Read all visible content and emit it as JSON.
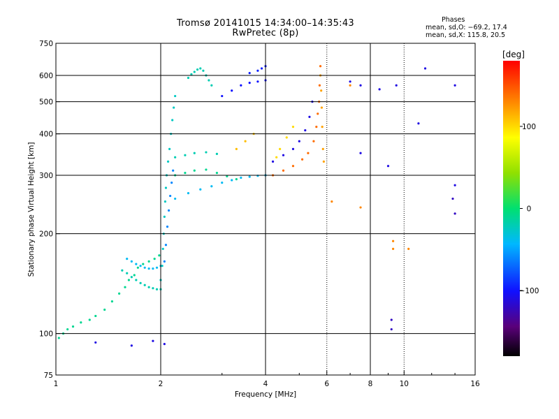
{
  "chart_data": {
    "type": "scatter",
    "title": "Tromsø 20141015 14:34:00–14:35:43",
    "subtitle": "RwPretec (8p)",
    "xlabel": "Frequency [MHz]",
    "ylabel": "Stationary phase Virtual Height [km]",
    "x_scale": "log",
    "y_scale": "log",
    "xlim": [
      1,
      16
    ],
    "ylim": [
      75,
      750
    ],
    "grid": true,
    "x_ticks": [
      1,
      2,
      4,
      6,
      8,
      10,
      16
    ],
    "x_tick_labels": [
      "1",
      "2",
      "4",
      "6",
      "8",
      "10",
      "16"
    ],
    "x_grid_lines": [
      2,
      4,
      8
    ],
    "x_dotted_lines": [
      6,
      10
    ],
    "y_ticks": [
      75,
      100,
      200,
      300,
      400,
      500,
      600,
      750
    ],
    "y_tick_labels": [
      "75",
      "100",
      "200",
      "300",
      "400",
      "500",
      "600",
      "750"
    ],
    "y_grid_lines": [
      100,
      200,
      300,
      400,
      500,
      600
    ],
    "stats": {
      "heading": "Phases",
      "line_o": "mean, sd,O: −69.2, 17.4",
      "line_x": "mean, sd,X: 115.8, 20.5"
    },
    "colorbar": {
      "label": "[deg]",
      "range": [
        -180,
        180
      ],
      "ticks": [
        100,
        0,
        -100
      ],
      "tick_labels": [
        "100",
        "0",
        "−100"
      ]
    },
    "series": [
      {
        "values": [
          [
            1.02,
            97
          ],
          [
            1.05,
            100
          ],
          [
            1.08,
            103
          ],
          [
            1.12,
            105
          ],
          [
            1.18,
            108
          ],
          [
            1.25,
            110
          ],
          [
            1.3,
            113
          ],
          [
            1.38,
            118
          ],
          [
            1.45,
            125
          ],
          [
            1.52,
            132
          ],
          [
            1.58,
            138
          ],
          [
            1.62,
            145
          ],
          [
            1.68,
            150
          ],
          [
            1.72,
            158
          ],
          [
            1.78,
            162
          ],
          [
            1.85,
            165
          ],
          [
            1.92,
            168
          ],
          [
            1.98,
            172
          ]
        ],
        "phase": -10
      },
      {
        "values": [
          [
            1.55,
            155
          ],
          [
            1.6,
            152
          ],
          [
            1.65,
            148
          ],
          [
            1.7,
            145
          ],
          [
            1.75,
            142
          ],
          [
            1.8,
            140
          ],
          [
            1.85,
            138
          ],
          [
            1.9,
            137
          ],
          [
            1.95,
            136
          ],
          [
            2.0,
            136
          ]
        ],
        "phase": -20
      },
      {
        "values": [
          [
            1.6,
            168
          ],
          [
            1.65,
            165
          ],
          [
            1.7,
            162
          ],
          [
            1.75,
            160
          ],
          [
            1.8,
            158
          ],
          [
            1.85,
            157
          ],
          [
            1.9,
            157
          ],
          [
            1.95,
            158
          ],
          [
            2.0,
            160
          ]
        ],
        "phase": -40
      },
      {
        "values": [
          [
            2.0,
            145
          ],
          [
            2.02,
            160
          ],
          [
            2.03,
            180
          ],
          [
            2.04,
            200
          ],
          [
            2.05,
            225
          ],
          [
            2.06,
            250
          ],
          [
            2.07,
            275
          ],
          [
            2.08,
            300
          ],
          [
            2.1,
            330
          ],
          [
            2.12,
            360
          ],
          [
            2.14,
            400
          ],
          [
            2.16,
            440
          ],
          [
            2.18,
            480
          ],
          [
            2.2,
            520
          ]
        ],
        "phase": -25
      },
      {
        "values": [
          [
            2.05,
            165
          ],
          [
            2.07,
            185
          ],
          [
            2.09,
            210
          ],
          [
            2.11,
            235
          ],
          [
            2.13,
            260
          ],
          [
            2.15,
            285
          ],
          [
            2.17,
            310
          ]
        ],
        "phase": -60
      },
      {
        "values": [
          [
            2.4,
            590
          ],
          [
            2.45,
            605
          ],
          [
            2.5,
            615
          ],
          [
            2.55,
            625
          ],
          [
            2.6,
            630
          ],
          [
            2.65,
            620
          ],
          [
            2.7,
            600
          ],
          [
            2.75,
            580
          ],
          [
            2.8,
            560
          ]
        ],
        "phase": -20
      },
      {
        "values": [
          [
            2.2,
            300
          ],
          [
            2.35,
            305
          ],
          [
            2.5,
            310
          ],
          [
            2.7,
            312
          ],
          [
            2.9,
            305
          ],
          [
            3.1,
            298
          ],
          [
            3.3,
            292
          ]
        ],
        "phase": -10
      },
      {
        "values": [
          [
            2.2,
            340
          ],
          [
            2.35,
            345
          ],
          [
            2.5,
            350
          ],
          [
            2.7,
            352
          ],
          [
            2.9,
            348
          ]
        ],
        "phase": -20
      },
      {
        "values": [
          [
            2.2,
            255
          ],
          [
            2.4,
            265
          ],
          [
            2.6,
            272
          ],
          [
            2.8,
            278
          ],
          [
            3.0,
            285
          ],
          [
            3.2,
            290
          ],
          [
            3.4,
            295
          ],
          [
            3.6,
            297
          ],
          [
            3.8,
            299
          ],
          [
            4.0,
            300
          ]
        ],
        "phase": -40
      },
      {
        "values": [
          [
            3.0,
            520
          ],
          [
            3.2,
            540
          ],
          [
            3.4,
            560
          ],
          [
            3.6,
            570
          ],
          [
            3.8,
            575
          ],
          [
            4.0,
            580
          ]
        ],
        "phase": -100
      },
      {
        "values": [
          [
            3.6,
            610
          ],
          [
            3.8,
            620
          ],
          [
            3.9,
            630
          ],
          [
            4.0,
            640
          ]
        ],
        "phase": -95
      },
      {
        "values": [
          [
            3.3,
            360
          ],
          [
            3.5,
            380
          ],
          [
            3.7,
            400
          ]
        ],
        "phase": 110
      },
      {
        "values": [
          [
            4.2,
            300
          ],
          [
            4.5,
            310
          ],
          [
            4.8,
            320
          ],
          [
            5.1,
            335
          ],
          [
            5.3,
            350
          ],
          [
            5.5,
            380
          ],
          [
            5.6,
            420
          ],
          [
            5.65,
            460
          ],
          [
            5.7,
            500
          ],
          [
            5.72,
            560
          ],
          [
            5.75,
            640
          ]
        ],
        "phase": 140
      },
      {
        "values": [
          [
            4.2,
            330
          ],
          [
            4.5,
            345
          ],
          [
            4.8,
            360
          ],
          [
            5.0,
            380
          ],
          [
            5.2,
            410
          ],
          [
            5.35,
            450
          ],
          [
            5.45,
            500
          ]
        ],
        "phase": -110
      },
      {
        "values": [
          [
            5.75,
            600
          ],
          [
            5.78,
            540
          ],
          [
            5.8,
            480
          ],
          [
            5.82,
            420
          ],
          [
            5.85,
            360
          ],
          [
            5.88,
            330
          ]
        ],
        "phase": 120
      },
      {
        "values": [
          [
            4.3,
            340
          ],
          [
            4.4,
            360
          ],
          [
            4.6,
            390
          ],
          [
            4.8,
            420
          ]
        ],
        "phase": 100
      },
      {
        "values": [
          [
            7.0,
            575
          ],
          [
            7.5,
            560
          ],
          [
            8.5,
            545
          ],
          [
            9.5,
            560
          ],
          [
            11.5,
            630
          ],
          [
            14.0,
            560
          ]
        ],
        "phase": -110
      },
      {
        "values": [
          [
            9.0,
            320
          ],
          [
            7.5,
            350
          ],
          [
            11.0,
            430
          ],
          [
            14.0,
            280
          ]
        ],
        "phase": -110
      },
      {
        "values": [
          [
            6.2,
            250
          ],
          [
            7.5,
            240
          ],
          [
            7.0,
            560
          ],
          [
            9.3,
            190
          ],
          [
            9.3,
            180
          ],
          [
            10.3,
            180
          ]
        ],
        "phase": 130
      },
      {
        "values": [
          [
            9.2,
            110
          ],
          [
            9.2,
            103
          ],
          [
            13.8,
            255
          ],
          [
            14.0,
            230
          ]
        ],
        "phase": -120
      },
      {
        "values": [
          [
            1.65,
            92
          ],
          [
            1.9,
            95
          ],
          [
            2.05,
            93
          ],
          [
            1.3,
            94
          ]
        ],
        "phase": -110
      }
    ]
  }
}
